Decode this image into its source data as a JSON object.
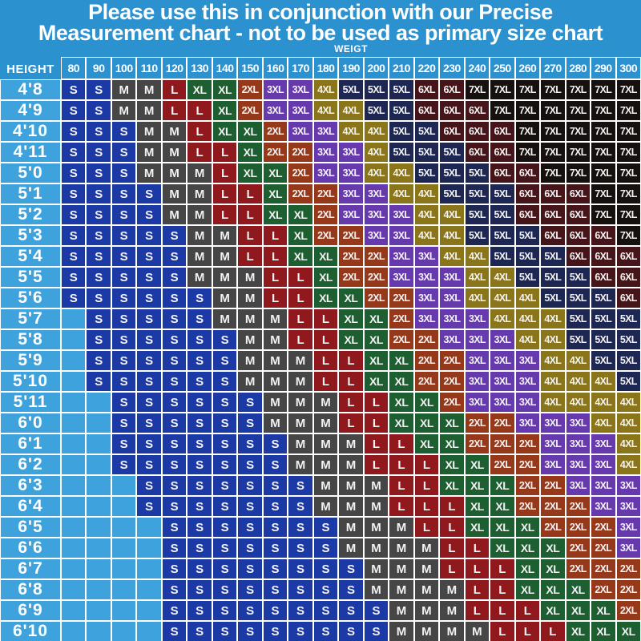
{
  "title": {
    "line1": "Please use this in conjunction with our Precise",
    "line2": "Measurement chart - not to be used as primary size chart"
  },
  "axis": {
    "weight_label": "WEIGT",
    "height_label": "HEIGHT"
  },
  "chart_data": {
    "type": "table",
    "title": "Height vs weight size lookup chart",
    "xlabel": "WEIGT",
    "ylabel": "HEIGHT",
    "weights": [
      80,
      90,
      100,
      110,
      120,
      130,
      140,
      150,
      160,
      170,
      180,
      190,
      200,
      210,
      220,
      230,
      240,
      250,
      260,
      270,
      280,
      290,
      300
    ],
    "heights": [
      "4'8",
      "4'9",
      "4'10",
      "4'11",
      "5'0",
      "5'1",
      "5'2",
      "5'3",
      "5'4",
      "5'5",
      "5'6",
      "5'7",
      "5'8",
      "5'9",
      "5'10",
      "5'11",
      "6'0",
      "6'1",
      "6'2",
      "6'3",
      "6'4",
      "6'5",
      "6'6",
      "6'7",
      "6'8",
      "6'9",
      "6'10"
    ],
    "sizes": [
      [
        "S",
        "S",
        "M",
        "M",
        "L",
        "XL",
        "XL",
        "2XL",
        "3XL",
        "3XL",
        "4XL",
        "5XL",
        "5XL",
        "5XL",
        "6XL",
        "6XL",
        "7XL",
        "7XL",
        "7XL",
        "7XL",
        "7XL",
        "7XL",
        "7XL"
      ],
      [
        "S",
        "S",
        "M",
        "M",
        "L",
        "L",
        "XL",
        "2XL",
        "3XL",
        "3XL",
        "4XL",
        "4XL",
        "5XL",
        "5XL",
        "6XL",
        "6XL",
        "6XL",
        "7XL",
        "7XL",
        "7XL",
        "7XL",
        "7XL",
        "7XL"
      ],
      [
        "S",
        "S",
        "S",
        "M",
        "M",
        "L",
        "XL",
        "XL",
        "2XL",
        "3XL",
        "3XL",
        "4XL",
        "4XL",
        "5XL",
        "5XL",
        "6XL",
        "6XL",
        "6XL",
        "7XL",
        "7XL",
        "7XL",
        "7XL",
        "7XL"
      ],
      [
        "S",
        "S",
        "S",
        "M",
        "M",
        "L",
        "L",
        "XL",
        "2XL",
        "2XL",
        "3XL",
        "3XL",
        "4XL",
        "5XL",
        "5XL",
        "5XL",
        "6XL",
        "6XL",
        "7XL",
        "7XL",
        "7XL",
        "7XL",
        "7XL"
      ],
      [
        "S",
        "S",
        "S",
        "M",
        "M",
        "M",
        "L",
        "XL",
        "XL",
        "2XL",
        "3XL",
        "3XL",
        "4XL",
        "4XL",
        "5XL",
        "5XL",
        "5XL",
        "6XL",
        "6XL",
        "7XL",
        "7XL",
        "7XL",
        "7XL"
      ],
      [
        "S",
        "S",
        "S",
        "S",
        "M",
        "M",
        "L",
        "L",
        "XL",
        "2XL",
        "2XL",
        "3XL",
        "3XL",
        "4XL",
        "4XL",
        "5XL",
        "5XL",
        "5XL",
        "6XL",
        "6XL",
        "6XL",
        "7XL",
        "7XL"
      ],
      [
        "S",
        "S",
        "S",
        "S",
        "M",
        "M",
        "L",
        "L",
        "XL",
        "XL",
        "2XL",
        "3XL",
        "3XL",
        "3XL",
        "4XL",
        "4XL",
        "5XL",
        "5XL",
        "6XL",
        "6XL",
        "6XL",
        "7XL",
        "7XL"
      ],
      [
        "S",
        "S",
        "S",
        "S",
        "S",
        "M",
        "M",
        "L",
        "L",
        "XL",
        "2XL",
        "2XL",
        "3XL",
        "3XL",
        "4XL",
        "4XL",
        "5XL",
        "5XL",
        "5XL",
        "6XL",
        "6XL",
        "6XL",
        "7XL"
      ],
      [
        "S",
        "S",
        "S",
        "S",
        "S",
        "M",
        "M",
        "L",
        "L",
        "XL",
        "XL",
        "2XL",
        "2XL",
        "3XL",
        "3XL",
        "4XL",
        "4XL",
        "5XL",
        "5XL",
        "5XL",
        "6XL",
        "6XL",
        "6XL"
      ],
      [
        "S",
        "S",
        "S",
        "S",
        "S",
        "M",
        "M",
        "M",
        "L",
        "L",
        "XL",
        "2XL",
        "2XL",
        "3XL",
        "3XL",
        "3XL",
        "4XL",
        "4XL",
        "5XL",
        "5XL",
        "5XL",
        "6XL",
        "6XL"
      ],
      [
        "S",
        "S",
        "S",
        "S",
        "S",
        "S",
        "M",
        "M",
        "L",
        "L",
        "XL",
        "XL",
        "2XL",
        "2XL",
        "3XL",
        "3XL",
        "4XL",
        "4XL",
        "4XL",
        "5XL",
        "5XL",
        "5XL",
        "6XL"
      ],
      [
        "",
        "S",
        "S",
        "S",
        "S",
        "S",
        "M",
        "M",
        "M",
        "L",
        "L",
        "XL",
        "XL",
        "2XL",
        "3XL",
        "3XL",
        "3XL",
        "4XL",
        "4XL",
        "4XL",
        "5XL",
        "5XL",
        "5XL"
      ],
      [
        "",
        "S",
        "S",
        "S",
        "S",
        "S",
        "S",
        "M",
        "M",
        "L",
        "L",
        "XL",
        "XL",
        "2XL",
        "2XL",
        "3XL",
        "3XL",
        "3XL",
        "4XL",
        "4XL",
        "5XL",
        "5XL",
        "5XL"
      ],
      [
        "",
        "S",
        "S",
        "S",
        "S",
        "S",
        "S",
        "M",
        "M",
        "M",
        "L",
        "L",
        "XL",
        "XL",
        "2XL",
        "2XL",
        "3XL",
        "3XL",
        "3XL",
        "4XL",
        "4XL",
        "5XL",
        "5XL"
      ],
      [
        "",
        "S",
        "S",
        "S",
        "S",
        "S",
        "S",
        "M",
        "M",
        "M",
        "L",
        "L",
        "XL",
        "XL",
        "2XL",
        "2XL",
        "3XL",
        "3XL",
        "3XL",
        "4XL",
        "4XL",
        "4XL",
        "5XL"
      ],
      [
        "",
        "",
        "S",
        "S",
        "S",
        "S",
        "S",
        "S",
        "M",
        "M",
        "M",
        "L",
        "L",
        "XL",
        "XL",
        "2XL",
        "3XL",
        "3XL",
        "3XL",
        "4XL",
        "4XL",
        "4XL",
        "4XL"
      ],
      [
        "",
        "",
        "S",
        "S",
        "S",
        "S",
        "S",
        "S",
        "M",
        "M",
        "M",
        "L",
        "L",
        "XL",
        "XL",
        "XL",
        "2XL",
        "2XL",
        "3XL",
        "3XL",
        "3XL",
        "4XL",
        "4XL"
      ],
      [
        "",
        "",
        "S",
        "S",
        "S",
        "S",
        "S",
        "S",
        "S",
        "M",
        "M",
        "M",
        "L",
        "L",
        "XL",
        "XL",
        "2XL",
        "2XL",
        "2XL",
        "3XL",
        "3XL",
        "3XL",
        "4XL"
      ],
      [
        "",
        "",
        "S",
        "S",
        "S",
        "S",
        "S",
        "S",
        "S",
        "M",
        "M",
        "M",
        "L",
        "L",
        "L",
        "XL",
        "XL",
        "2XL",
        "2XL",
        "3XL",
        "3XL",
        "3XL",
        "4XL"
      ],
      [
        "",
        "",
        "",
        "S",
        "S",
        "S",
        "S",
        "S",
        "S",
        "S",
        "M",
        "M",
        "M",
        "L",
        "L",
        "XL",
        "XL",
        "XL",
        "2XL",
        "2XL",
        "3XL",
        "3XL",
        "3XL"
      ],
      [
        "",
        "",
        "",
        "S",
        "S",
        "S",
        "S",
        "S",
        "S",
        "S",
        "M",
        "M",
        "M",
        "L",
        "L",
        "L",
        "XL",
        "XL",
        "2XL",
        "2XL",
        "2XL",
        "3XL",
        "3XL"
      ],
      [
        "",
        "",
        "",
        "",
        "S",
        "S",
        "S",
        "S",
        "S",
        "S",
        "S",
        "M",
        "M",
        "M",
        "L",
        "L",
        "XL",
        "XL",
        "XL",
        "2XL",
        "2XL",
        "2XL",
        "3XL"
      ],
      [
        "",
        "",
        "",
        "",
        "S",
        "S",
        "S",
        "S",
        "S",
        "S",
        "S",
        "M",
        "M",
        "M",
        "M",
        "L",
        "L",
        "XL",
        "XL",
        "XL",
        "2XL",
        "2XL",
        "3XL"
      ],
      [
        "",
        "",
        "",
        "",
        "S",
        "S",
        "S",
        "S",
        "S",
        "S",
        "S",
        "S",
        "M",
        "M",
        "M",
        "L",
        "L",
        "L",
        "XL",
        "XL",
        "2XL",
        "2XL",
        "2XL"
      ],
      [
        "",
        "",
        "",
        "",
        "S",
        "S",
        "S",
        "S",
        "S",
        "S",
        "S",
        "S",
        "M",
        "M",
        "M",
        "M",
        "L",
        "L",
        "XL",
        "XL",
        "XL",
        "2XL",
        "2XL"
      ],
      [
        "",
        "",
        "",
        "",
        "S",
        "S",
        "S",
        "S",
        "S",
        "S",
        "S",
        "S",
        "S",
        "M",
        "M",
        "M",
        "L",
        "L",
        "L",
        "XL",
        "XL",
        "XL",
        "2XL"
      ],
      [
        "",
        "",
        "",
        "",
        "S",
        "S",
        "S",
        "S",
        "S",
        "S",
        "S",
        "S",
        "S",
        "M",
        "M",
        "M",
        "M",
        "L",
        "L",
        "L",
        "XL",
        "XL",
        "XL"
      ]
    ],
    "size_colors": {
      "S": "#1B3AA6",
      "M": "#464646",
      "L": "#8F191C",
      "XL": "#1D5F31",
      "2XL": "#96391B",
      "3XL": "#6639AC",
      "4XL": "#8A751B",
      "5XL": "#1D2752",
      "6XL": "#461519",
      "7XL": "#16110E"
    },
    "empty_cell_color": "#3EA2DC",
    "row_label_color": "#3EA2DC",
    "background_color": "#2B91CF",
    "gridline_color": "#FFFFFF",
    "legend_position": "none",
    "grid": true
  }
}
